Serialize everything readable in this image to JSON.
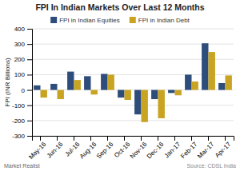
{
  "chart_data": {
    "type": "bar",
    "title": "FPI In Indian Markets Over Last 12 Months",
    "y_label": "FPI (INR Billions)",
    "categories": [
      "May-16",
      "Jun-16",
      "Jul-16",
      "Aug-16",
      "Sep-16",
      "Oct-16",
      "Nov-16",
      "Dec-16",
      "Jan-17",
      "Feb-17",
      "Mar-17",
      "Apr-17"
    ],
    "series": [
      {
        "name": "FPI in Indian Equities",
        "color": "#2e4d7b",
        "values": [
          30,
          40,
          120,
          90,
          105,
          -50,
          -160,
          -60,
          -20,
          100,
          305,
          45
        ]
      },
      {
        "name": "FPI in Indian Debt",
        "color": "#c8a422",
        "values": [
          -50,
          -60,
          65,
          -30,
          100,
          -65,
          -210,
          -185,
          -35,
          55,
          248,
          95
        ]
      }
    ],
    "ylim": [
      -300,
      400
    ],
    "yticks": [
      -300,
      -200,
      -100,
      0,
      100,
      200,
      300,
      400
    ],
    "grid": true,
    "legend": "top",
    "annotations": [
      "Market Realist",
      "Source: CDSL India"
    ]
  }
}
